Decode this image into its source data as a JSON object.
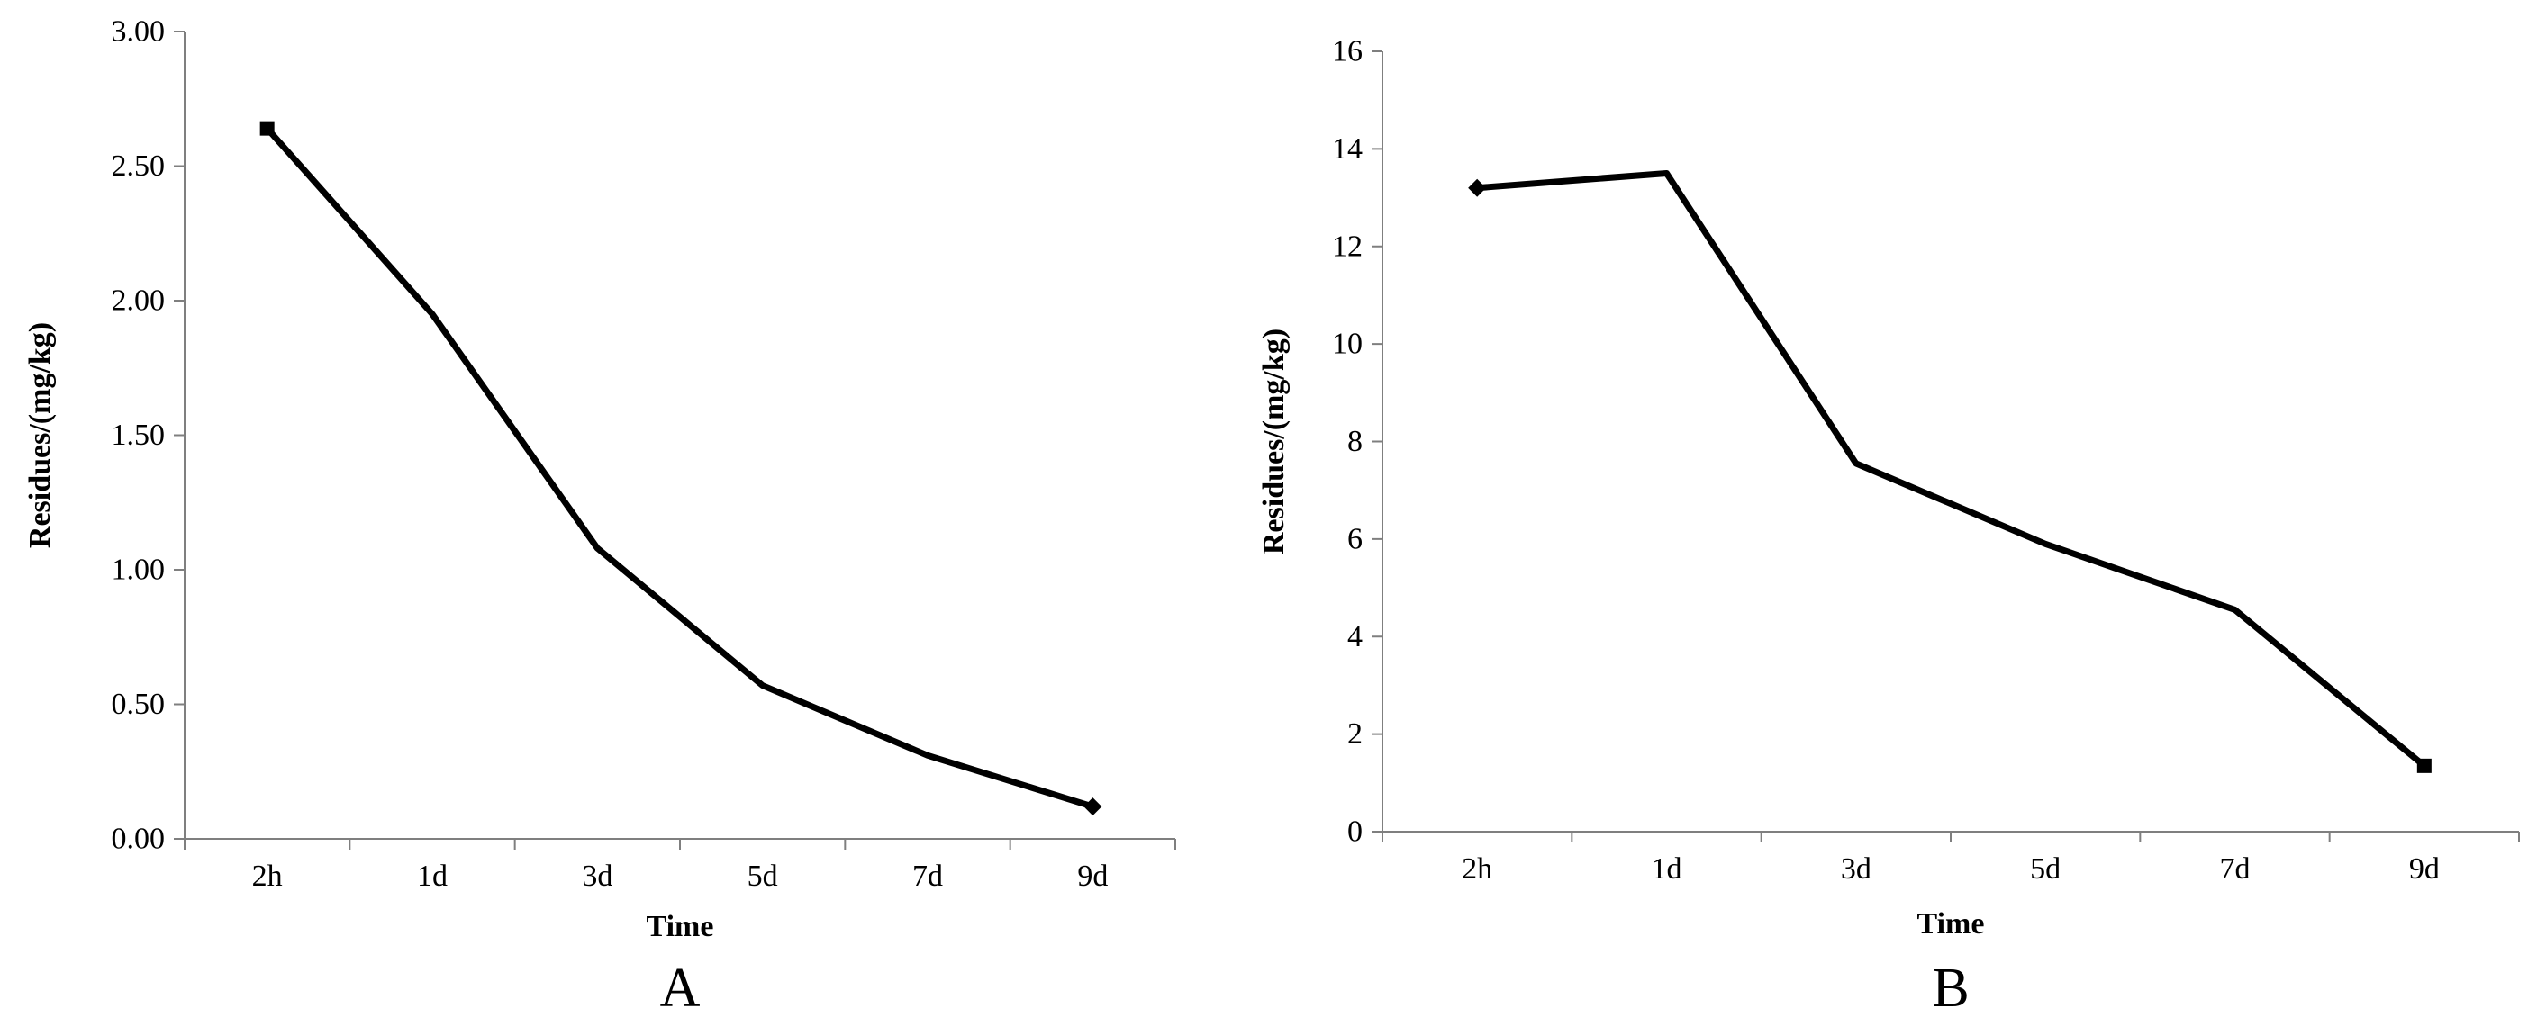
{
  "chart_data": [
    {
      "type": "line",
      "panel_label": "A",
      "xlabel": "Time",
      "ylabel": "Residues/(mg/kg)",
      "categories": [
        "2h",
        "1d",
        "3d",
        "5d",
        "7d",
        "9d"
      ],
      "values": [
        2.64,
        1.95,
        1.08,
        0.57,
        0.31,
        0.12
      ],
      "ylim": [
        0,
        3
      ],
      "yticks": [
        "0.00",
        "0.50",
        "1.00",
        "1.50",
        "2.00",
        "2.50",
        "3.00"
      ],
      "ytick_values": [
        0,
        0.5,
        1,
        1.5,
        2,
        2.5,
        3
      ],
      "grid": false,
      "marker_start": "square",
      "marker_end": "diamond"
    },
    {
      "type": "line",
      "panel_label": "B",
      "xlabel": "Time",
      "ylabel": "Residues/(mg/kg)",
      "categories": [
        "2h",
        "1d",
        "3d",
        "5d",
        "7d",
        "9d"
      ],
      "values": [
        13.2,
        13.5,
        7.55,
        5.9,
        4.55,
        1.35
      ],
      "ylim": [
        0,
        16
      ],
      "yticks": [
        "0",
        "2",
        "4",
        "6",
        "8",
        "10",
        "12",
        "14",
        "16"
      ],
      "ytick_values": [
        0,
        2,
        4,
        6,
        8,
        10,
        12,
        14,
        16
      ],
      "grid": false,
      "marker_start": "diamond",
      "marker_end": "square"
    }
  ]
}
